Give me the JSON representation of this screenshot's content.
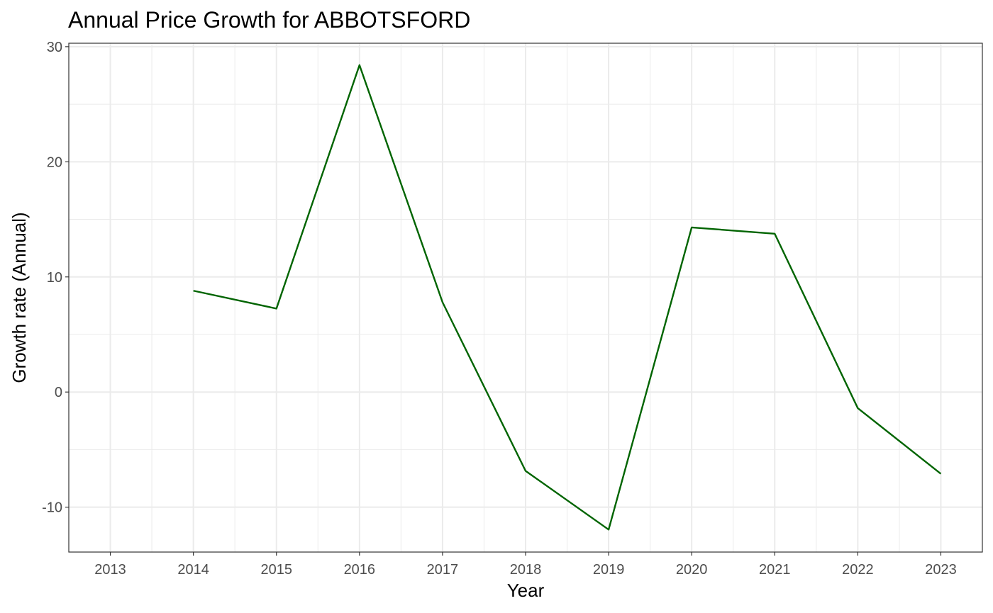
{
  "chart_data": {
    "type": "line",
    "title": "Annual Price Growth for ABBOTSFORD",
    "xlabel": "Year",
    "ylabel": "Growth rate (Annual)",
    "xlim": [
      2012.5,
      2023.5
    ],
    "ylim": [
      -13.9,
      30.3
    ],
    "x_ticks": [
      2013,
      2014,
      2015,
      2016,
      2017,
      2018,
      2019,
      2020,
      2021,
      2022,
      2023
    ],
    "y_ticks": [
      -10,
      0,
      10,
      20,
      30
    ],
    "grid": true,
    "legend": "none",
    "series": [
      {
        "color": "#006400",
        "x": [
          2014,
          2015,
          2016,
          2017,
          2018,
          2019,
          2020,
          2021,
          2022,
          2023
        ],
        "y": [
          8.8,
          7.25,
          28.4,
          7.8,
          -6.85,
          -11.95,
          14.3,
          13.75,
          -1.4,
          -7.1
        ]
      }
    ]
  }
}
